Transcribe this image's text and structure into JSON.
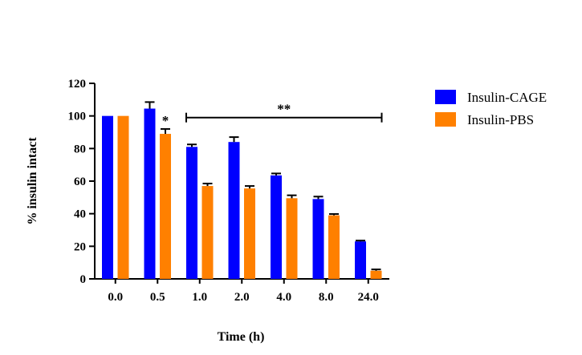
{
  "chart_data": {
    "type": "bar",
    "title": "",
    "xlabel": "Time (h)",
    "ylabel": "% insulin intact",
    "ylim": [
      0,
      120
    ],
    "yticks": [
      0,
      20,
      40,
      60,
      80,
      100,
      120
    ],
    "categories": [
      "0.0",
      "0.5",
      "1.0",
      "2.0",
      "4.0",
      "8.0",
      "24.0"
    ],
    "series": [
      {
        "name": "Insulin-CAGE",
        "color": "#0000ff",
        "values": [
          100,
          104.5,
          81,
          84,
          63.5,
          49,
          23
        ],
        "errors": [
          0,
          4,
          1.5,
          3,
          1.2,
          1.5,
          0.5
        ]
      },
      {
        "name": "Insulin-PBS",
        "color": "#ff8000",
        "values": [
          100,
          89,
          57,
          55.5,
          49.5,
          39,
          5
        ],
        "errors": [
          0,
          3,
          1.5,
          1.5,
          1.8,
          0.8,
          0.8
        ]
      }
    ],
    "legend_position": "right",
    "annotations": [
      {
        "text": "*",
        "category_index": 1,
        "series_index": 1
      },
      {
        "text": "**",
        "bracket_from": "1.0",
        "bracket_to": "24.0",
        "y": 99
      }
    ]
  }
}
